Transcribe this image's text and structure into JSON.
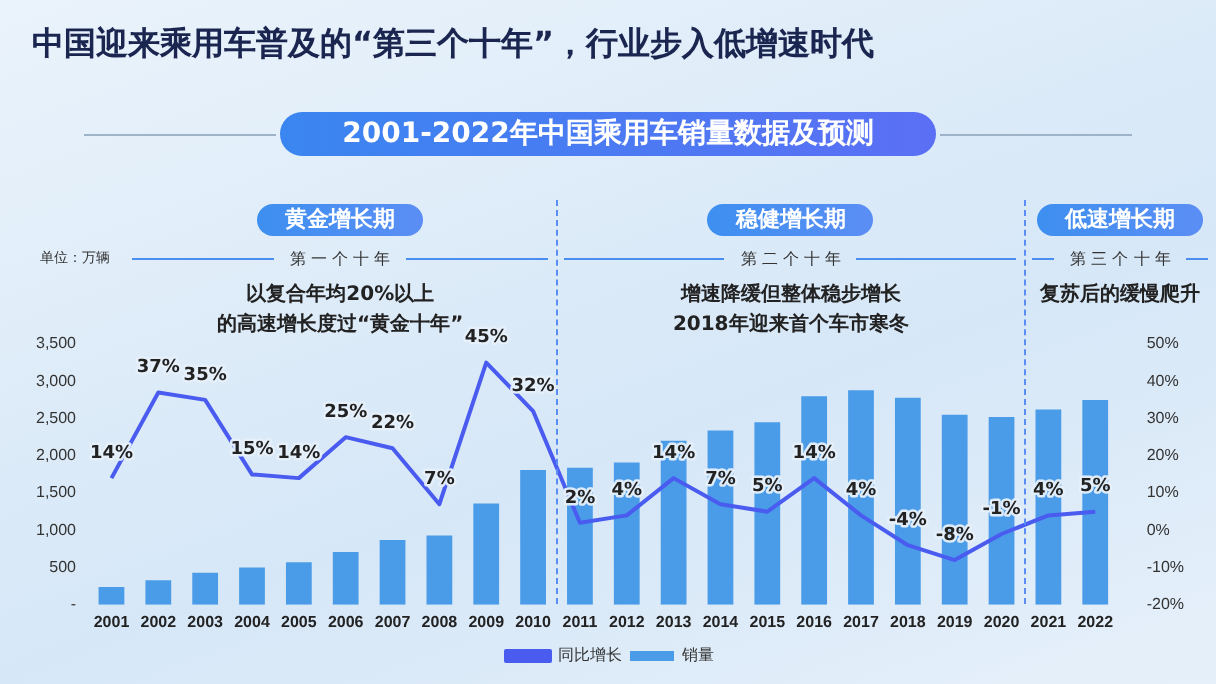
{
  "chart_data": {
    "type": "bar",
    "title": "中国迎来乘用车普及的“第三个十年”，行业步入低增速时代",
    "subtitle": "2001-2022年中国乘用车销量数据及预测",
    "ylabel": "单位：万辆",
    "categories": [
      "2001",
      "2002",
      "2003",
      "2004",
      "2005",
      "2006",
      "2007",
      "2008",
      "2009",
      "2010",
      "2011",
      "2012",
      "2013",
      "2014",
      "2015",
      "2016",
      "2017",
      "2018",
      "2019",
      "2020",
      "2021",
      "2022"
    ],
    "series": [
      {
        "name": "销量",
        "color": "#4a9be8",
        "values": [
          240,
          330,
          430,
          500,
          570,
          710,
          870,
          930,
          1360,
          1810,
          1840,
          1910,
          2200,
          2340,
          2450,
          2800,
          2880,
          2780,
          2550,
          2520,
          2620,
          2750
        ]
      },
      {
        "name": "同比增长",
        "type": "line",
        "axis": "y2",
        "color": "#4a5cf0",
        "values": [
          14,
          37,
          35,
          15,
          14,
          25,
          22,
          7,
          45,
          32,
          2,
          4,
          14,
          7,
          5,
          14,
          4,
          -4,
          -8,
          -1,
          4,
          5
        ],
        "value_labels": [
          "14%",
          "37%",
          "35%",
          "15%",
          "14%",
          "25%",
          "22%",
          "7%",
          "45%",
          "32%",
          "2%",
          "4%",
          "14%",
          "7%",
          "5%",
          "14%",
          "4%",
          "-4%",
          "-8%",
          "-1%",
          "4%",
          "5%"
        ]
      }
    ],
    "ylim": [
      0,
      3500
    ],
    "yticks": [
      {
        "value": 0,
        "label": "-"
      },
      {
        "value": 500,
        "label": "500"
      },
      {
        "value": 1000,
        "label": "1,000"
      },
      {
        "value": 1500,
        "label": "1,500"
      },
      {
        "value": 2000,
        "label": "2,000"
      },
      {
        "value": 2500,
        "label": "2,500"
      },
      {
        "value": 3000,
        "label": "3,000"
      },
      {
        "value": 3500,
        "label": "3,500"
      }
    ],
    "y2lim": [
      -20,
      50
    ],
    "y2ticks": [
      {
        "value": -20,
        "label": "-20%"
      },
      {
        "value": -10,
        "label": "-10%"
      },
      {
        "value": 0,
        "label": "0%"
      },
      {
        "value": 10,
        "label": "10%"
      },
      {
        "value": 20,
        "label": "20%"
      },
      {
        "value": 30,
        "label": "30%"
      },
      {
        "value": 40,
        "label": "40%"
      },
      {
        "value": 50,
        "label": "50%"
      }
    ],
    "grid": false,
    "legend": "bottom",
    "marker": "none",
    "annotations": [
      "黄金增长期",
      "第 一 个 十 年",
      "以复合年均20%以上",
      "的高速增长度过“黄金十年”",
      "稳健增长期",
      "第 二 个 十 年",
      "增速降缓但整体稳步增长",
      "2018年迎来首个车市寒冬",
      "低速增长期",
      "第 三 个 十 年",
      "复苏后的缓慢爬升"
    ]
  }
}
